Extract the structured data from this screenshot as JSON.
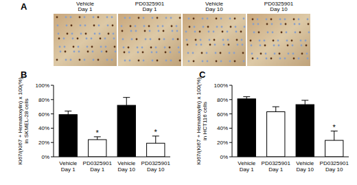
{
  "panel_labels": [
    "A",
    "B",
    "C"
  ],
  "images": [
    {
      "title": "Vehicle Day 1"
    },
    {
      "title": "PD0325901 Day 1"
    },
    {
      "title": "Vehicle Day 10"
    },
    {
      "title": "PD0325901 Day 10"
    }
  ],
  "chart_data": [
    {
      "type": "bar",
      "y_label": "Ki67/(Ki67 + Hematoxylin) x 100(%)",
      "y_label_2": "in SKMEL-28 cells",
      "categories": [
        "Vehicle Day 1",
        "PD0325901 Day 1",
        "Vehicle Day 10",
        "PD0325901 Day 10"
      ],
      "values": [
        59,
        24,
        72,
        19
      ],
      "errors": [
        5,
        4,
        11,
        10
      ],
      "colors": [
        "#000000",
        "#ffffff",
        "#000000",
        "#ffffff"
      ],
      "annotations": [
        {
          "text": "*",
          "index": 1
        },
        {
          "text": "*",
          "index": 3
        }
      ],
      "ylim": [
        0,
        100
      ],
      "yticks": [
        {
          "value": 0,
          "label": "0%"
        },
        {
          "value": 20,
          "label": "20%"
        },
        {
          "value": 40,
          "label": "40%"
        },
        {
          "value": 60,
          "label": "60%"
        },
        {
          "value": 80,
          "label": "80%"
        },
        {
          "value": 100,
          "label": "100%"
        }
      ],
      "grid": false
    },
    {
      "type": "bar",
      "y_label": "Ki67/(Ki67 + Hematoxylin) x 100(%)",
      "y_label_2": "in HCT116 cells",
      "categories": [
        "Vehicle Day 1",
        "PD0325901 Day 1",
        "Vehicle Day 10",
        "PD0325901 Day 10"
      ],
      "values": [
        81,
        63,
        73,
        23
      ],
      "errors": [
        3,
        7,
        6,
        13
      ],
      "colors": [
        "#000000",
        "#ffffff",
        "#000000",
        "#ffffff"
      ],
      "annotations": [
        {
          "text": "*",
          "index": 3
        }
      ],
      "ylim": [
        0,
        100
      ],
      "yticks": [
        {
          "value": 0,
          "label": "0%"
        },
        {
          "value": 20,
          "label": "20%"
        },
        {
          "value": 40,
          "label": "40%"
        },
        {
          "value": 60,
          "label": "60%"
        },
        {
          "value": 80,
          "label": "80%"
        },
        {
          "value": 100,
          "label": "100%"
        }
      ],
      "grid": false
    }
  ]
}
